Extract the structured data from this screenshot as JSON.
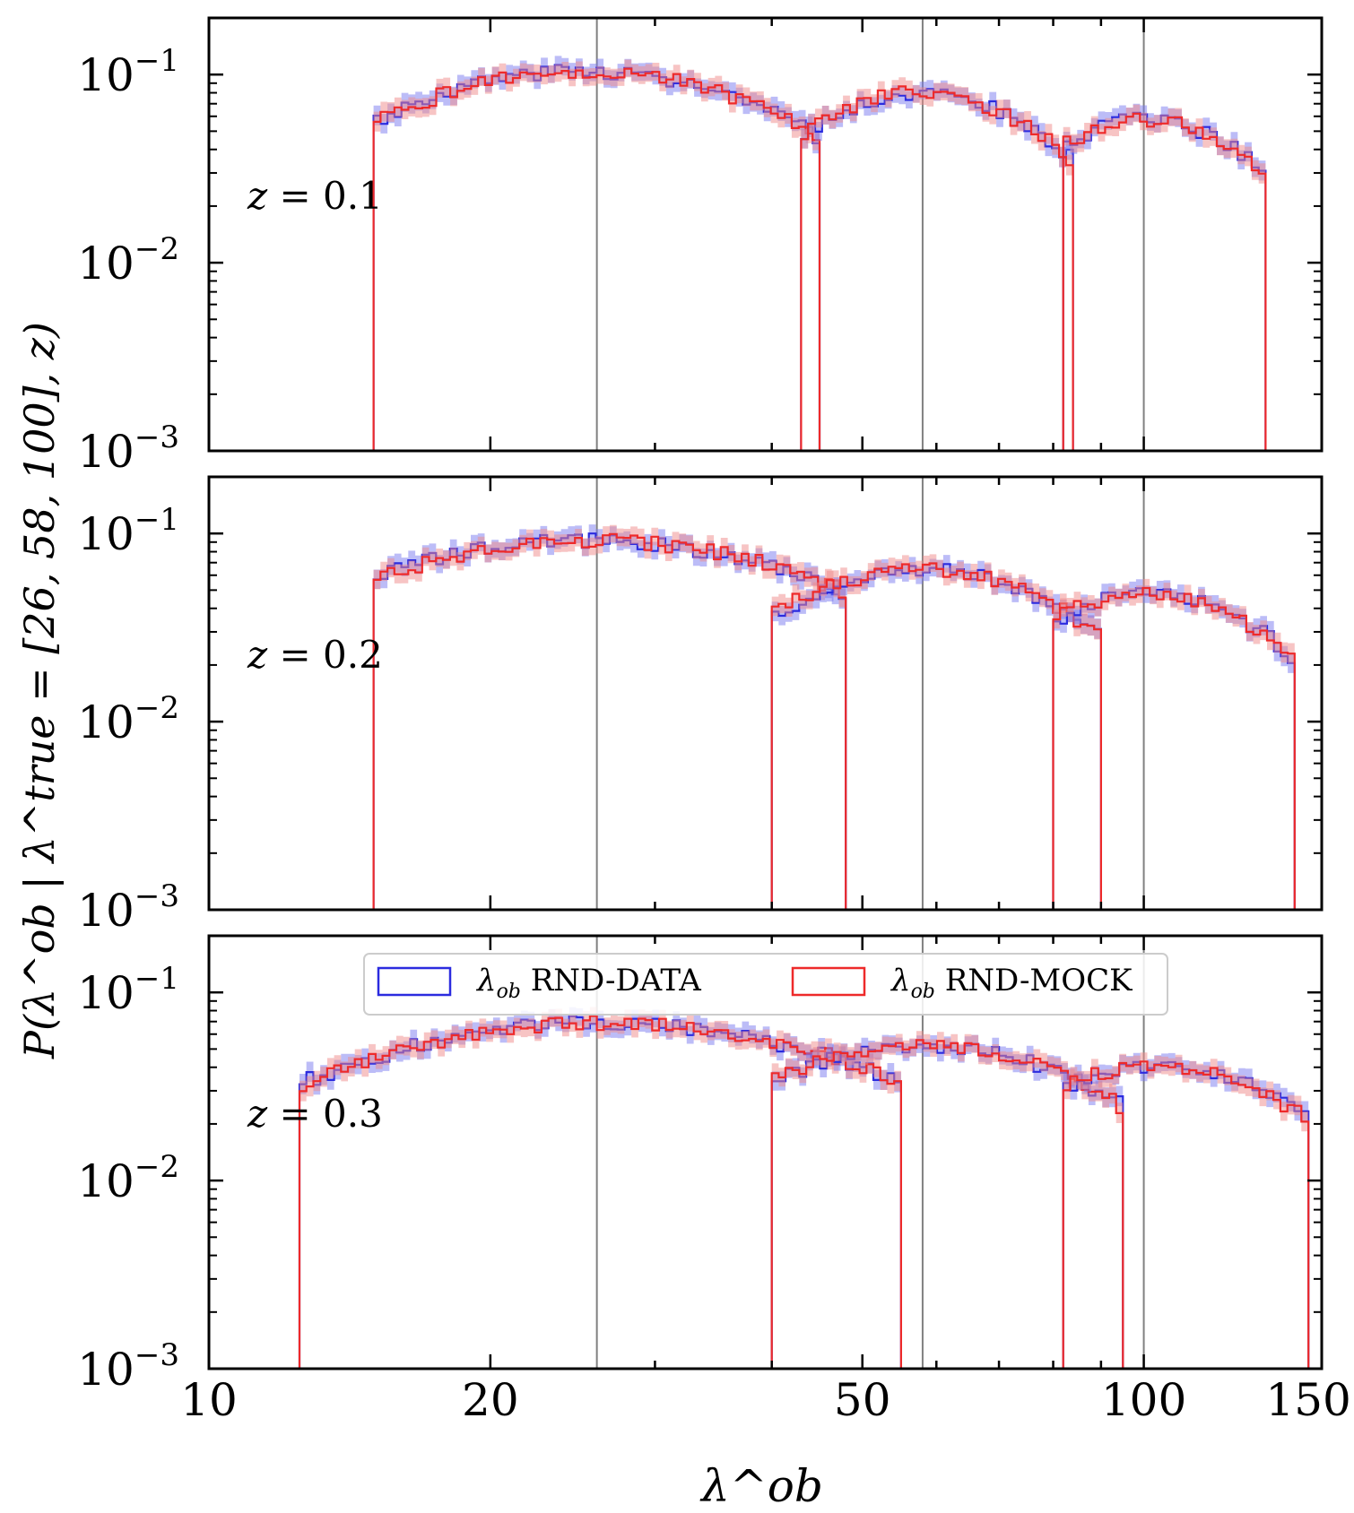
{
  "chart_data": {
    "type": "line",
    "figure_kind": "step-histogram",
    "xlabel": "λ^ob",
    "ylabel": "P(λ^ob | λ^true = [26, 58, 100], z)",
    "xscale": "log",
    "yscale": "log",
    "xlim": [
      10,
      155
    ],
    "ylim": [
      0.001,
      0.2
    ],
    "x_ticks": [
      {
        "value": 10,
        "label": "10"
      },
      {
        "value": 20,
        "label": "20"
      },
      {
        "value": 50,
        "label": "50"
      },
      {
        "value": 100,
        "label": "100"
      },
      {
        "value": 150,
        "label": "150"
      }
    ],
    "y_ticks": [
      {
        "value": 0.1,
        "base": "10",
        "exp": "−1"
      },
      {
        "value": 0.01,
        "base": "10",
        "exp": "−2"
      },
      {
        "value": 0.001,
        "base": "10",
        "exp": "−3"
      }
    ],
    "reference_lines": [
      26,
      58,
      100
    ],
    "legend": {
      "position": "top-center of bottom panel",
      "entries": [
        {
          "symbol": "λ",
          "subscript": "ob",
          "text": "RND-DATA",
          "color": "#2b2bdf"
        },
        {
          "symbol": "λ",
          "subscript": "ob",
          "text": "RND-MOCK",
          "color": "#ee2a2a"
        }
      ]
    },
    "colors": {
      "data": "#2b2bdf",
      "mock": "#ee2a2a",
      "data_band": "#7a7af0",
      "mock_band": "#f08a8a",
      "refline": "#808080"
    },
    "panels": [
      {
        "label_var": "z",
        "label_value": "0.1",
        "peaks": [
          {
            "lambda_true": 26,
            "mode": 25.0,
            "peak": 0.105,
            "sigma_left": 0.2,
            "sigma_right": 0.2,
            "x_min": 15,
            "x_max": 45
          },
          {
            "lambda_true": 58,
            "mode": 57.5,
            "peak": 0.08,
            "sigma_left": 0.12,
            "sigma_right": 0.13,
            "x_min": 43,
            "x_max": 84
          },
          {
            "lambda_true": 100,
            "mode": 100.5,
            "peak": 0.058,
            "sigma_left": 0.105,
            "sigma_right": 0.11,
            "x_min": 82,
            "x_max": 135
          }
        ]
      },
      {
        "label_var": "z",
        "label_value": "0.2",
        "peaks": [
          {
            "lambda_true": 26,
            "mode": 25.5,
            "peak": 0.092,
            "sigma_left": 0.24,
            "sigma_right": 0.24,
            "x_min": 15,
            "x_max": 48
          },
          {
            "lambda_true": 58,
            "mode": 58.5,
            "peak": 0.064,
            "sigma_left": 0.155,
            "sigma_right": 0.15,
            "x_min": 40,
            "x_max": 90
          },
          {
            "lambda_true": 100,
            "mode": 101.0,
            "peak": 0.048,
            "sigma_left": 0.12,
            "sigma_right": 0.125,
            "x_min": 80,
            "x_max": 145
          }
        ]
      },
      {
        "label_var": "z",
        "label_value": "0.3",
        "peaks": [
          {
            "lambda_true": 26,
            "mode": 26.0,
            "peak": 0.069,
            "sigma_left": 0.26,
            "sigma_right": 0.27,
            "x_min": 12.5,
            "x_max": 55
          },
          {
            "lambda_true": 58,
            "mode": 58.5,
            "peak": 0.052,
            "sigma_left": 0.175,
            "sigma_right": 0.175,
            "x_min": 40,
            "x_max": 95
          },
          {
            "lambda_true": 100,
            "mode": 103.0,
            "peak": 0.04,
            "sigma_left": 0.14,
            "sigma_right": 0.15,
            "x_min": 82,
            "x_max": 150
          }
        ]
      }
    ]
  }
}
